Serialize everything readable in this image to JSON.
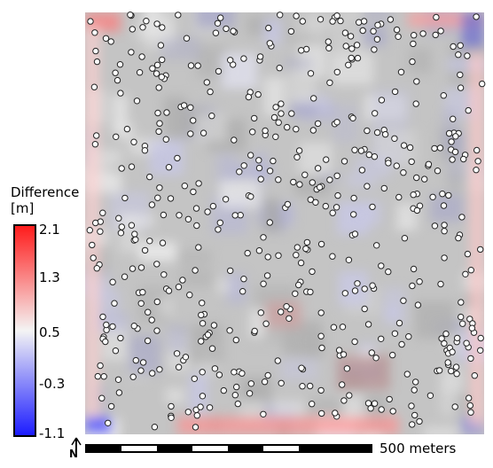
{
  "legend": {
    "title_line1": "Difference",
    "title_line2": "[m]",
    "ticks": [
      "2.1",
      "1.3",
      "0.5",
      "-0.3",
      "-1.1"
    ],
    "colors": {
      "max": "#ff0000",
      "mid": "#f4f4f4",
      "min": "#0000ff",
      "frame": "#000000"
    }
  },
  "scale_bar": {
    "label": "500 meters"
  },
  "north_arrow": {
    "label": "N"
  },
  "map": {
    "background_gray": "#bdbdbd",
    "point_fill": "#ffffff",
    "point_stroke": "#222222"
  }
}
